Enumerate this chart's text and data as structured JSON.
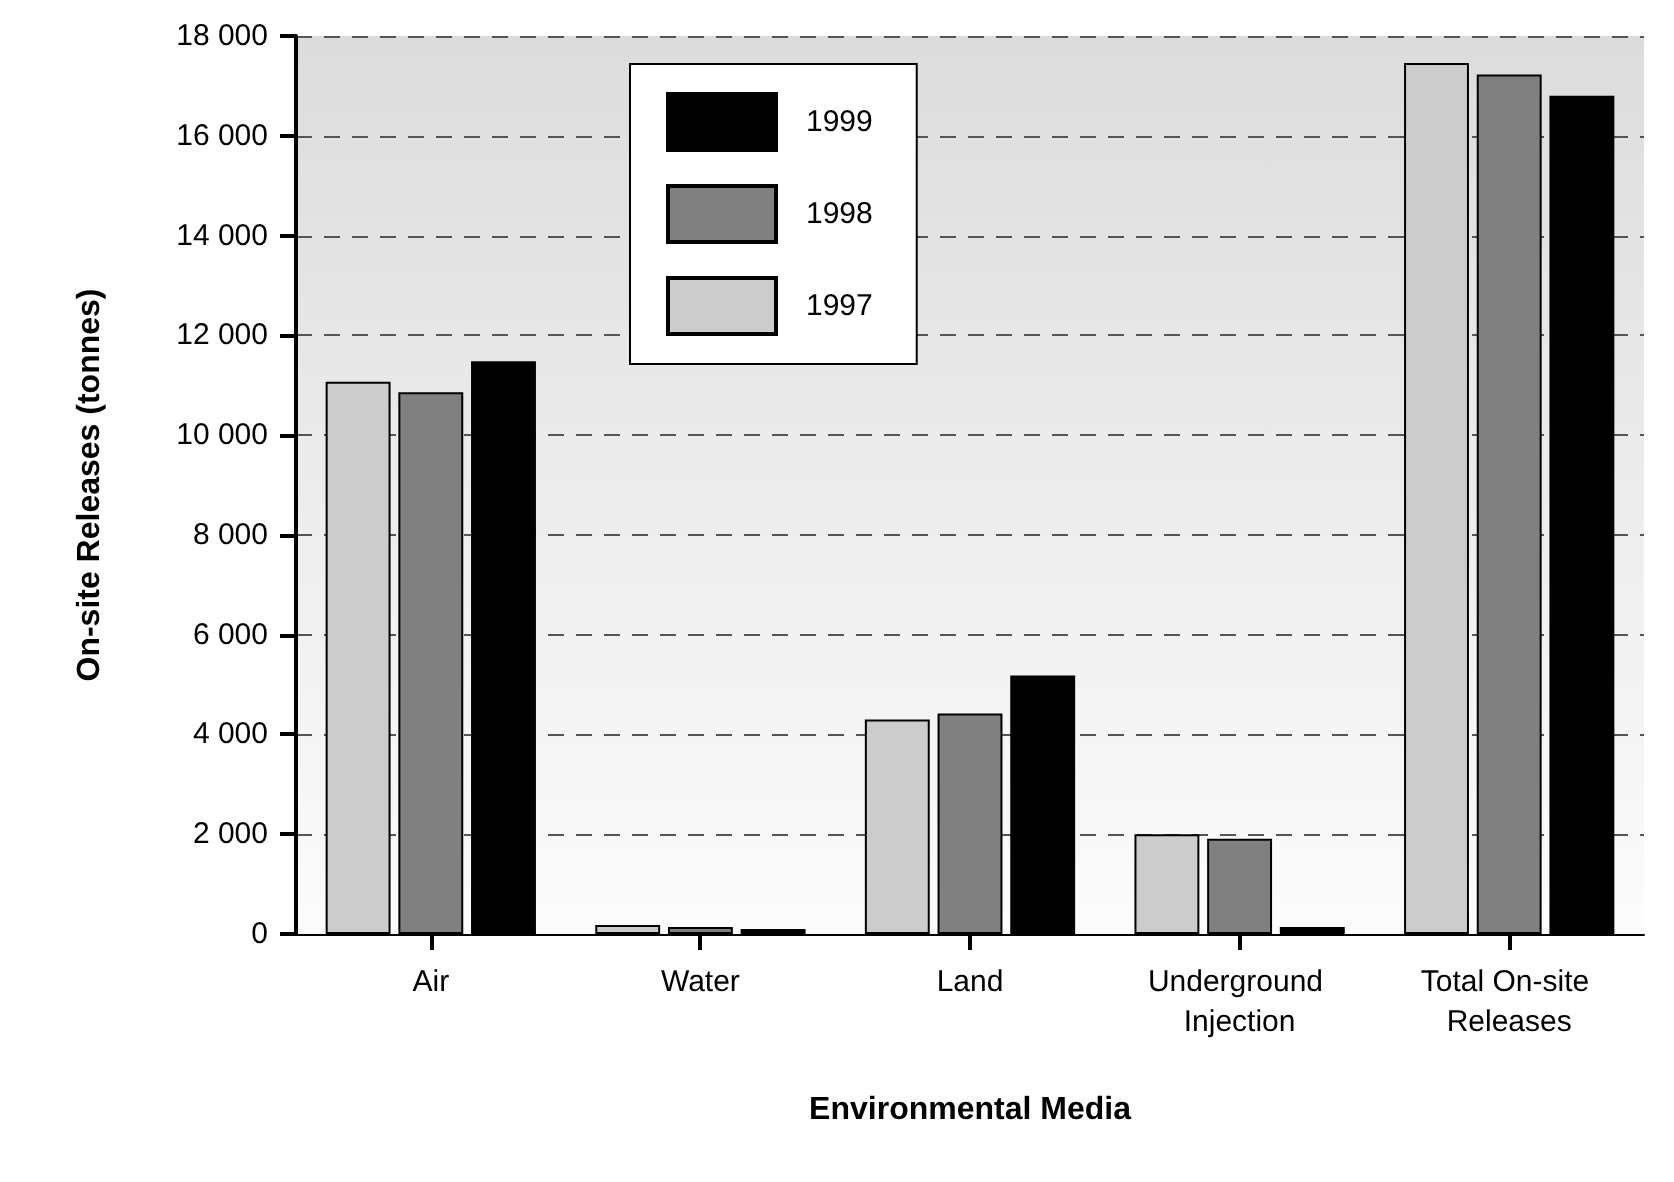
{
  "chart_data": {
    "type": "bar",
    "xlabel": "Environmental Media",
    "ylabel": "On-site Releases (tonnes)",
    "categories": [
      "Air",
      "Water",
      "Land",
      "Underground Injection",
      "Total On-site Releases"
    ],
    "series": [
      {
        "name": "1997",
        "color": "#cccccc",
        "values": [
          11070,
          180,
          4300,
          2000,
          17460
        ]
      },
      {
        "name": "1998",
        "color": "#808080",
        "values": [
          10860,
          140,
          4420,
          1910,
          17230
        ]
      },
      {
        "name": "1999",
        "color": "#000000",
        "values": [
          11480,
          100,
          5180,
          140,
          16800
        ]
      }
    ],
    "ylim": [
      0,
      18000
    ],
    "yticks": [
      {
        "value": 0,
        "label": "0"
      },
      {
        "value": 2000,
        "label": "2 000"
      },
      {
        "value": 4000,
        "label": "4 000"
      },
      {
        "value": 6000,
        "label": "6 000"
      },
      {
        "value": 8000,
        "label": "8 000"
      },
      {
        "value": 10000,
        "label": "10 000"
      },
      {
        "value": 12000,
        "label": "12 000"
      },
      {
        "value": 14000,
        "label": "14 000"
      },
      {
        "value": 16000,
        "label": "16 000"
      },
      {
        "value": 18000,
        "label": "18 000"
      }
    ],
    "grid": "y",
    "legend": "top left"
  }
}
